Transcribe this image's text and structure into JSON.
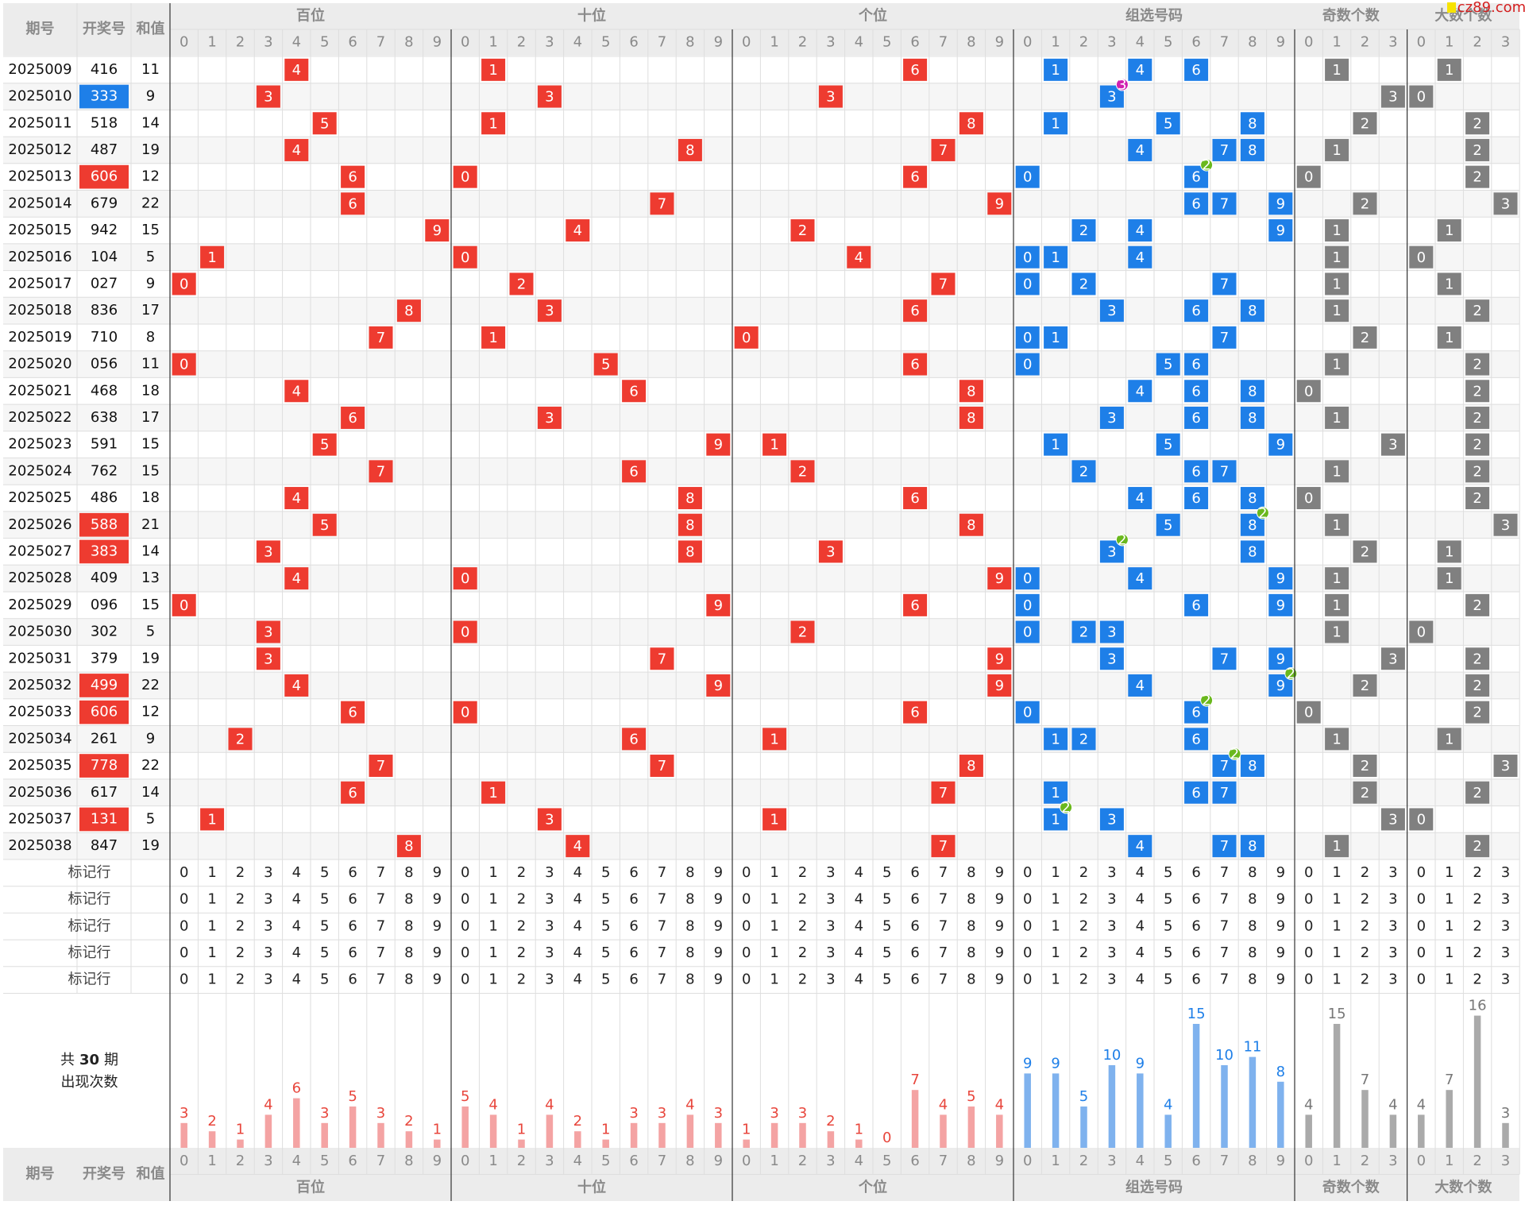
{
  "header": {
    "issue": "期号",
    "number": "开奖号",
    "sum": "和值"
  },
  "sections": [
    {
      "name": "百位",
      "digits": [
        0,
        1,
        2,
        3,
        4,
        5,
        6,
        7,
        8,
        9
      ],
      "counts": [
        3,
        2,
        1,
        4,
        6,
        3,
        5,
        3,
        2,
        1
      ]
    },
    {
      "name": "十位",
      "digits": [
        0,
        1,
        2,
        3,
        4,
        5,
        6,
        7,
        8,
        9
      ],
      "counts": [
        5,
        4,
        1,
        4,
        2,
        1,
        3,
        3,
        4,
        3
      ]
    },
    {
      "name": "个位",
      "digits": [
        0,
        1,
        2,
        3,
        4,
        5,
        6,
        7,
        8,
        9
      ],
      "counts": [
        1,
        3,
        3,
        2,
        1,
        0,
        7,
        4,
        5,
        4
      ]
    },
    {
      "name": "组选号码",
      "digits": [
        0,
        1,
        2,
        3,
        4,
        5,
        6,
        7,
        8,
        9
      ],
      "counts": [
        9,
        9,
        5,
        10,
        9,
        4,
        15,
        10,
        11,
        8
      ]
    },
    {
      "name": "奇数个数",
      "digits": [
        0,
        1,
        2,
        3
      ],
      "counts": [
        4,
        15,
        7,
        4
      ]
    },
    {
      "name": "大数个数",
      "digits": [
        0,
        1,
        2,
        3
      ],
      "counts": [
        4,
        7,
        16,
        3
      ]
    }
  ],
  "rows": [
    {
      "issue": "2025009",
      "number": "416",
      "sum": 11,
      "positions": [
        4,
        1,
        6
      ],
      "group": [
        1,
        4,
        6
      ],
      "odd": 1,
      "big": 1
    },
    {
      "issue": "2025010",
      "number": "333",
      "sum": 9,
      "positions": [
        3,
        3,
        3
      ],
      "group": [
        3
      ],
      "odd": 3,
      "big": 0,
      "repeat": {
        "digit": 3,
        "count": 3
      }
    },
    {
      "issue": "2025011",
      "number": "518",
      "sum": 14,
      "positions": [
        5,
        1,
        8
      ],
      "group": [
        1,
        5,
        8
      ],
      "odd": 2,
      "big": 2
    },
    {
      "issue": "2025012",
      "number": "487",
      "sum": 19,
      "positions": [
        4,
        8,
        7
      ],
      "group": [
        4,
        7,
        8
      ],
      "odd": 1,
      "big": 2
    },
    {
      "issue": "2025013",
      "number": "606",
      "sum": 12,
      "positions": [
        6,
        0,
        6
      ],
      "group": [
        0,
        6
      ],
      "odd": 0,
      "big": 2,
      "repeat": {
        "digit": 6,
        "count": 2
      }
    },
    {
      "issue": "2025014",
      "number": "679",
      "sum": 22,
      "positions": [
        6,
        7,
        9
      ],
      "group": [
        6,
        7,
        9
      ],
      "odd": 2,
      "big": 3
    },
    {
      "issue": "2025015",
      "number": "942",
      "sum": 15,
      "positions": [
        9,
        4,
        2
      ],
      "group": [
        2,
        4,
        9
      ],
      "odd": 1,
      "big": 1
    },
    {
      "issue": "2025016",
      "number": "104",
      "sum": 5,
      "positions": [
        1,
        0,
        4
      ],
      "group": [
        0,
        1,
        4
      ],
      "odd": 1,
      "big": 0
    },
    {
      "issue": "2025017",
      "number": "027",
      "sum": 9,
      "positions": [
        0,
        2,
        7
      ],
      "group": [
        0,
        2,
        7
      ],
      "odd": 1,
      "big": 1
    },
    {
      "issue": "2025018",
      "number": "836",
      "sum": 17,
      "positions": [
        8,
        3,
        6
      ],
      "group": [
        3,
        6,
        8
      ],
      "odd": 1,
      "big": 2
    },
    {
      "issue": "2025019",
      "number": "710",
      "sum": 8,
      "positions": [
        7,
        1,
        0
      ],
      "group": [
        0,
        1,
        7
      ],
      "odd": 2,
      "big": 1
    },
    {
      "issue": "2025020",
      "number": "056",
      "sum": 11,
      "positions": [
        0,
        5,
        6
      ],
      "group": [
        0,
        5,
        6
      ],
      "odd": 1,
      "big": 2
    },
    {
      "issue": "2025021",
      "number": "468",
      "sum": 18,
      "positions": [
        4,
        6,
        8
      ],
      "group": [
        4,
        6,
        8
      ],
      "odd": 0,
      "big": 2
    },
    {
      "issue": "2025022",
      "number": "638",
      "sum": 17,
      "positions": [
        6,
        3,
        8
      ],
      "group": [
        3,
        6,
        8
      ],
      "odd": 1,
      "big": 2
    },
    {
      "issue": "2025023",
      "number": "591",
      "sum": 15,
      "positions": [
        5,
        9,
        1
      ],
      "group": [
        1,
        5,
        9
      ],
      "odd": 3,
      "big": 2
    },
    {
      "issue": "2025024",
      "number": "762",
      "sum": 15,
      "positions": [
        7,
        6,
        2
      ],
      "group": [
        2,
        6,
        7
      ],
      "odd": 1,
      "big": 2
    },
    {
      "issue": "2025025",
      "number": "486",
      "sum": 18,
      "positions": [
        4,
        8,
        6
      ],
      "group": [
        4,
        6,
        8
      ],
      "odd": 0,
      "big": 2
    },
    {
      "issue": "2025026",
      "number": "588",
      "sum": 21,
      "positions": [
        5,
        8,
        8
      ],
      "group": [
        5,
        8
      ],
      "odd": 1,
      "big": 3,
      "repeat": {
        "digit": 8,
        "count": 2
      }
    },
    {
      "issue": "2025027",
      "number": "383",
      "sum": 14,
      "positions": [
        3,
        8,
        3
      ],
      "group": [
        3,
        8
      ],
      "odd": 2,
      "big": 1,
      "repeat": {
        "digit": 3,
        "count": 2
      }
    },
    {
      "issue": "2025028",
      "number": "409",
      "sum": 13,
      "positions": [
        4,
        0,
        9
      ],
      "group": [
        0,
        4,
        9
      ],
      "odd": 1,
      "big": 1
    },
    {
      "issue": "2025029",
      "number": "096",
      "sum": 15,
      "positions": [
        0,
        9,
        6
      ],
      "group": [
        0,
        6,
        9
      ],
      "odd": 1,
      "big": 2
    },
    {
      "issue": "2025030",
      "number": "302",
      "sum": 5,
      "positions": [
        3,
        0,
        2
      ],
      "group": [
        0,
        2,
        3
      ],
      "odd": 1,
      "big": 0
    },
    {
      "issue": "2025031",
      "number": "379",
      "sum": 19,
      "positions": [
        3,
        7,
        9
      ],
      "group": [
        3,
        7,
        9
      ],
      "odd": 3,
      "big": 2
    },
    {
      "issue": "2025032",
      "number": "499",
      "sum": 22,
      "positions": [
        4,
        9,
        9
      ],
      "group": [
        4,
        9
      ],
      "odd": 2,
      "big": 2,
      "repeat": {
        "digit": 9,
        "count": 2
      }
    },
    {
      "issue": "2025033",
      "number": "606",
      "sum": 12,
      "positions": [
        6,
        0,
        6
      ],
      "group": [
        0,
        6
      ],
      "odd": 0,
      "big": 2,
      "repeat": {
        "digit": 6,
        "count": 2
      }
    },
    {
      "issue": "2025034",
      "number": "261",
      "sum": 9,
      "positions": [
        2,
        6,
        1
      ],
      "group": [
        1,
        2,
        6
      ],
      "odd": 1,
      "big": 1
    },
    {
      "issue": "2025035",
      "number": "778",
      "sum": 22,
      "positions": [
        7,
        7,
        8
      ],
      "group": [
        7,
        8
      ],
      "odd": 2,
      "big": 3,
      "repeat": {
        "digit": 7,
        "count": 2
      }
    },
    {
      "issue": "2025036",
      "number": "617",
      "sum": 14,
      "positions": [
        6,
        1,
        7
      ],
      "group": [
        1,
        6,
        7
      ],
      "odd": 2,
      "big": 2
    },
    {
      "issue": "2025037",
      "number": "131",
      "sum": 5,
      "positions": [
        1,
        3,
        1
      ],
      "group": [
        1,
        3
      ],
      "odd": 3,
      "big": 0,
      "repeat": {
        "digit": 1,
        "count": 2
      }
    },
    {
      "issue": "2025038",
      "number": "847",
      "sum": 19,
      "positions": [
        8,
        4,
        7
      ],
      "group": [
        4,
        7,
        8
      ],
      "odd": 1,
      "big": 2
    }
  ],
  "mark_rows": [
    "标记行",
    "标记行",
    "标记行",
    "标记行",
    "标记行"
  ],
  "summary": {
    "prefix": "共",
    "count": 30,
    "suffix": "期",
    "label": "出现次数"
  },
  "watermark": "cz89.com"
}
